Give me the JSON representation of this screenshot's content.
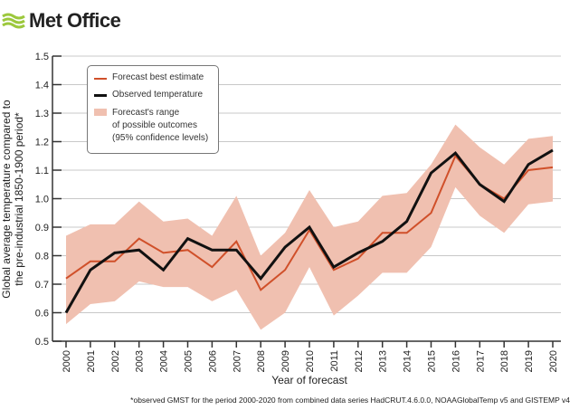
{
  "brand": {
    "name": "Met Office"
  },
  "footnote": "*observed GMST for the period 2000-2020 from combined data series HadCRUT.4.6.0.0, NOAAGlobalTemp v5 and GISTEMP v4",
  "chart_data": {
    "type": "line",
    "xlabel": "Year of forecast",
    "ylabel": "Global average temperature compared to the pre-industrial 1850-1900 period*",
    "ylabel_lines": [
      "Global average temperature compared to",
      "the pre-industrial 1850-1900 period*"
    ],
    "ylim": [
      0.5,
      1.5
    ],
    "yticks": [
      "0.5",
      "0.6",
      "0.7",
      "0.8",
      "0.9",
      "1.0",
      "1.1",
      "1.2",
      "1.3",
      "1.4",
      "1.5"
    ],
    "x": [
      "2000",
      "2001",
      "2002",
      "2003",
      "2004",
      "2005",
      "2006",
      "2007",
      "2008",
      "2009",
      "2010",
      "2011",
      "2012",
      "2013",
      "2014",
      "2015",
      "2016",
      "2017",
      "2018",
      "2019",
      "2020"
    ],
    "grid": true,
    "legend_position": "top-left",
    "legend": {
      "forecast": "Forecast best estimate",
      "observed": "Observed temperature",
      "range_lines": [
        "Forecast's range",
        "of possible outcomes",
        "(95% confidence levels)"
      ]
    },
    "series": [
      {
        "name": "Forecast best estimate",
        "color": "#d0502a",
        "values": [
          0.72,
          0.78,
          0.78,
          0.86,
          0.81,
          0.82,
          0.76,
          0.85,
          0.68,
          0.75,
          0.89,
          0.75,
          0.79,
          0.88,
          0.88,
          0.95,
          1.15,
          1.05,
          1.0,
          1.1,
          1.11
        ]
      },
      {
        "name": "Observed temperature",
        "color": "#111111",
        "values": [
          0.6,
          0.75,
          0.81,
          0.82,
          0.75,
          0.86,
          0.82,
          0.82,
          0.72,
          0.83,
          0.9,
          0.76,
          0.81,
          0.85,
          0.92,
          1.09,
          1.16,
          1.05,
          0.99,
          1.12,
          1.17
        ]
      }
    ],
    "range": {
      "name": "Forecast's range of possible outcomes (95% confidence levels)",
      "color": "#f0c0b0",
      "upper": [
        0.87,
        0.91,
        0.91,
        0.99,
        0.92,
        0.93,
        0.87,
        1.01,
        0.8,
        0.88,
        1.03,
        0.9,
        0.92,
        1.01,
        1.02,
        1.12,
        1.26,
        1.18,
        1.12,
        1.21,
        1.22
      ],
      "lower": [
        0.56,
        0.63,
        0.64,
        0.71,
        0.69,
        0.69,
        0.64,
        0.68,
        0.54,
        0.6,
        0.76,
        0.59,
        0.66,
        0.74,
        0.74,
        0.83,
        1.04,
        0.94,
        0.88,
        0.98,
        0.99
      ]
    }
  }
}
